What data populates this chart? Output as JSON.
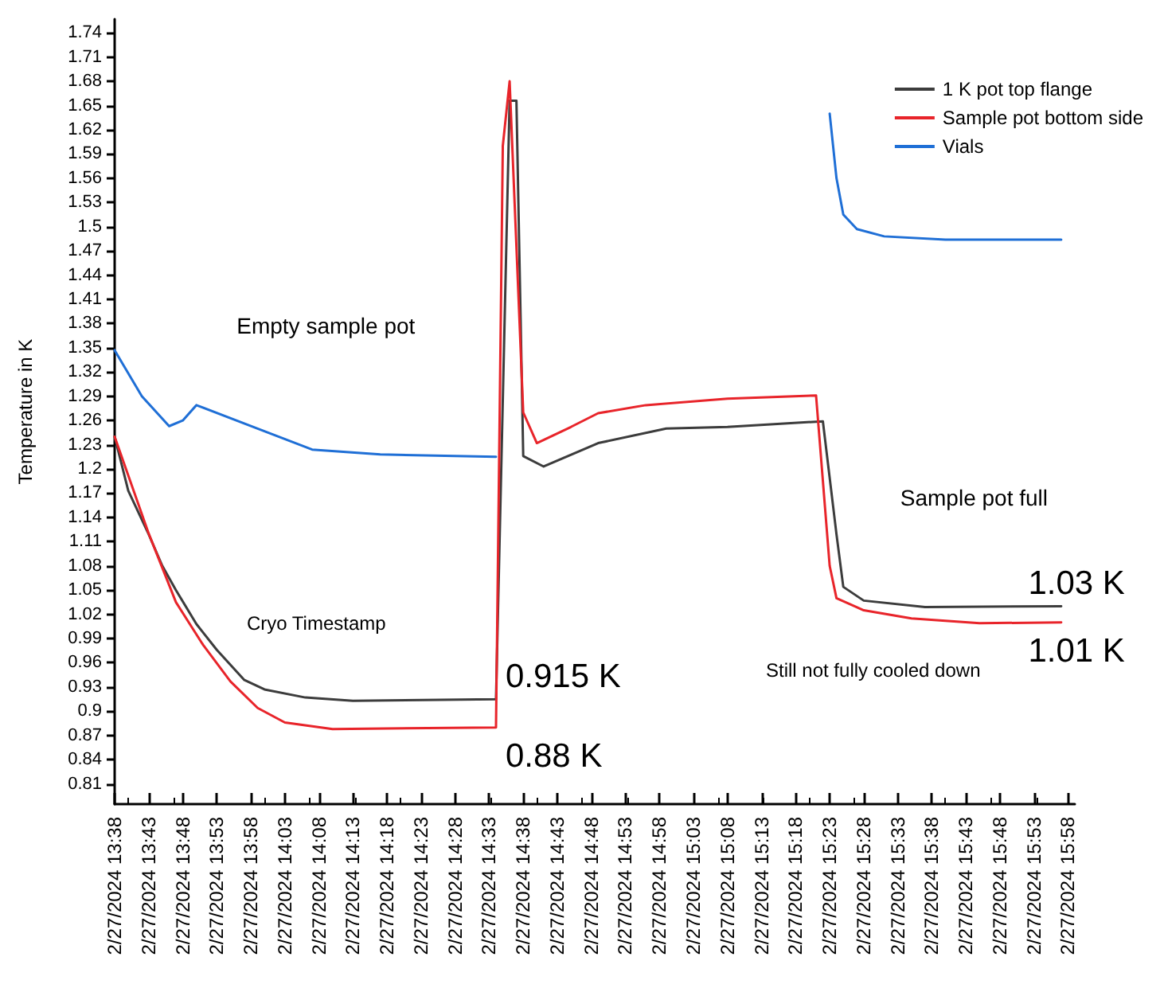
{
  "chart_data": {
    "type": "line",
    "ylabel": "Temperature in K",
    "legend": "top right",
    "marker": "none",
    "line_style": "solid",
    "grid": false,
    "xlim": [
      "2024-02-27T13:38",
      "2024-02-27T15:59"
    ],
    "ylim": [
      0.785,
      1.757
    ],
    "yticks": [
      0.81,
      0.84,
      0.87,
      0.9,
      0.93,
      0.96,
      0.99,
      1.02,
      1.05,
      1.08,
      1.11,
      1.14,
      1.17,
      1.2,
      1.23,
      1.26,
      1.29,
      1.32,
      1.35,
      1.38,
      1.41,
      1.44,
      1.47,
      1.5,
      1.53,
      1.56,
      1.59,
      1.62,
      1.65,
      1.68,
      1.71,
      1.74
    ],
    "xticks": [
      {
        "value": "2024-02-27T13:38",
        "label": "2/27/2024 13:38"
      },
      {
        "value": "2024-02-27T13:43",
        "label": "2/27/2024 13:43"
      },
      {
        "value": "2024-02-27T13:48",
        "label": "2/27/2024 13:48"
      },
      {
        "value": "2024-02-27T13:53",
        "label": "2/27/2024 13:53"
      },
      {
        "value": "2024-02-27T13:58",
        "label": "2/27/2024 13:58"
      },
      {
        "value": "2024-02-27T14:03",
        "label": "2/27/2024 14:03"
      },
      {
        "value": "2024-02-27T14:08",
        "label": "2/27/2024 14:08"
      },
      {
        "value": "2024-02-27T14:13",
        "label": "2/27/2024 14:13"
      },
      {
        "value": "2024-02-27T14:18",
        "label": "2/27/2024 14:18"
      },
      {
        "value": "2024-02-27T14:23",
        "label": "2/27/2024 14:23"
      },
      {
        "value": "2024-02-27T14:28",
        "label": "2/27/2024 14:28"
      },
      {
        "value": "2024-02-27T14:33",
        "label": "2/27/2024 14:33"
      },
      {
        "value": "2024-02-27T14:38",
        "label": "2/27/2024 14:38"
      },
      {
        "value": "2024-02-27T14:43",
        "label": "2/27/2024 14:43"
      },
      {
        "value": "2024-02-27T14:48",
        "label": "2/27/2024 14:48"
      },
      {
        "value": "2024-02-27T14:53",
        "label": "2/27/2024 14:53"
      },
      {
        "value": "2024-02-27T14:58",
        "label": "2/27/2024 14:58"
      },
      {
        "value": "2024-02-27T15:03",
        "label": "2/27/2024 15:03"
      },
      {
        "value": "2024-02-27T15:08",
        "label": "2/27/2024 15:08"
      },
      {
        "value": "2024-02-27T15:13",
        "label": "2/27/2024 15:13"
      },
      {
        "value": "2024-02-27T15:18",
        "label": "2/27/2024 15:18"
      },
      {
        "value": "2024-02-27T15:23",
        "label": "2/27/2024 15:23"
      },
      {
        "value": "2024-02-27T15:28",
        "label": "2/27/2024 15:28"
      },
      {
        "value": "2024-02-27T15:33",
        "label": "2/27/2024 15:33"
      },
      {
        "value": "2024-02-27T15:38",
        "label": "2/27/2024 15:38"
      },
      {
        "value": "2024-02-27T15:43",
        "label": "2/27/2024 15:43"
      },
      {
        "value": "2024-02-27T15:48",
        "label": "2/27/2024 15:48"
      },
      {
        "value": "2024-02-27T15:53",
        "label": "2/27/2024 15:53"
      },
      {
        "value": "2024-02-27T15:58",
        "label": "2/27/2024 15:58"
      }
    ],
    "series": [
      {
        "name": "1 K pot top flange",
        "color": "#3c3c3c",
        "x": [
          "2024-02-27T13:38",
          "2024-02-27T13:40",
          "2024-02-27T13:43",
          "2024-02-27T13:45",
          "2024-02-27T13:47",
          "2024-02-27T13:50",
          "2024-02-27T13:53",
          "2024-02-27T13:57",
          "2024-02-27T14:00",
          "2024-02-27T14:06",
          "2024-02-27T14:13",
          "2024-02-27T14:34",
          "2024-02-27T14:36",
          "2024-02-27T14:37",
          "2024-02-27T14:38",
          "2024-02-27T14:41",
          "2024-02-27T14:49",
          "2024-02-27T14:59",
          "2024-02-27T15:08",
          "2024-02-27T15:22",
          "2024-02-27T15:24",
          "2024-02-27T15:25",
          "2024-02-27T15:28",
          "2024-02-27T15:37",
          "2024-02-27T15:57"
        ],
        "values": [
          1.24,
          1.173,
          1.119,
          1.08,
          1.05,
          1.008,
          0.976,
          0.939,
          0.927,
          0.917,
          0.913,
          0.915,
          1.656,
          1.656,
          1.216,
          1.203,
          1.232,
          1.25,
          1.252,
          1.259,
          1.119,
          1.054,
          1.037,
          1.029,
          1.03
        ]
      },
      {
        "name": "Sample pot bottom side",
        "color": "#e8242a",
        "x": [
          "2024-02-27T13:38",
          "2024-02-27T13:43",
          "2024-02-27T13:47",
          "2024-02-27T13:51",
          "2024-02-27T13:55",
          "2024-02-27T13:59",
          "2024-02-27T14:03",
          "2024-02-27T14:10",
          "2024-02-27T14:34",
          "2024-02-27T14:35",
          "2024-02-27T14:36",
          "2024-02-27T14:38",
          "2024-02-27T14:40",
          "2024-02-27T14:45",
          "2024-02-27T14:49",
          "2024-02-27T14:56",
          "2024-02-27T15:08",
          "2024-02-27T15:21",
          "2024-02-27T15:23",
          "2024-02-27T15:24",
          "2024-02-27T15:28",
          "2024-02-27T15:35",
          "2024-02-27T15:45",
          "2024-02-27T15:57"
        ],
        "values": [
          1.24,
          1.12,
          1.035,
          0.982,
          0.937,
          0.904,
          0.886,
          0.878,
          0.88,
          1.6,
          1.68,
          1.27,
          1.232,
          1.252,
          1.269,
          1.279,
          1.287,
          1.291,
          1.08,
          1.04,
          1.025,
          1.015,
          1.009,
          1.01
        ]
      },
      {
        "name": "Vials",
        "color": "#1f6fd6",
        "x": [
          "2024-02-27T13:38",
          "2024-02-27T13:42",
          "2024-02-27T13:46",
          "2024-02-27T13:48",
          "2024-02-27T13:50",
          "2024-02-27T13:59",
          "2024-02-27T14:07",
          "2024-02-27T14:17",
          "2024-02-27T14:34",
          "2024-02-27T14:35",
          "2024-02-27T15:00",
          "2024-02-27T15:22",
          "2024-02-27T15:23",
          "2024-02-27T15:24",
          "2024-02-27T15:25",
          "2024-02-27T15:27",
          "2024-02-27T15:31",
          "2024-02-27T15:40",
          "2024-02-27T15:57"
        ],
        "values": [
          1.347,
          1.29,
          1.253,
          1.26,
          1.279,
          1.25,
          1.224,
          1.218,
          1.215,
          null,
          null,
          null,
          1.64,
          1.56,
          1.515,
          1.497,
          1.488,
          1.484,
          1.484
        ]
      }
    ],
    "annotations": [
      "Empty sample pot",
      "Cryo Timestamp",
      "Sample pot full",
      "Still not fully cooled down",
      {
        "text": "0.915 K",
        "x": "2024-02-27T14:34",
        "y": 0.915
      },
      {
        "text": "0.88 K",
        "x": "2024-02-27T14:34",
        "y": 0.88
      },
      {
        "text": "1.03 K",
        "x": "2024-02-27T15:57",
        "y": 1.03
      },
      {
        "text": "1.01 K",
        "x": "2024-02-27T15:57",
        "y": 1.01
      }
    ]
  }
}
